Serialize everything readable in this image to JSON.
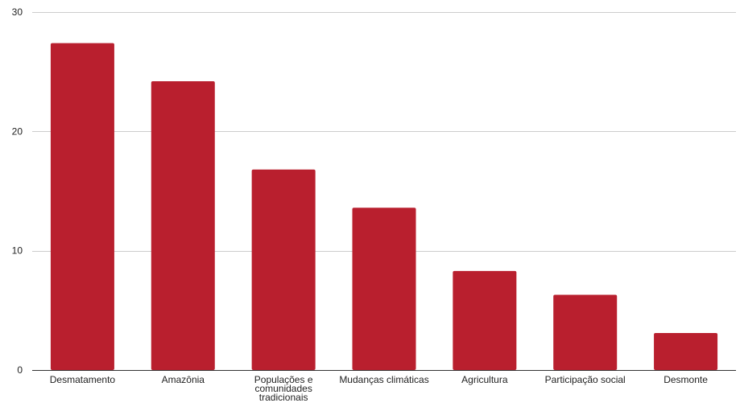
{
  "chart_data": {
    "type": "bar",
    "title": "",
    "xlabel": "",
    "ylabel": "",
    "categories": [
      "Desmatamento",
      "Amazônia",
      "Populações e comunidades tradicionais",
      "Mudanças climáticas",
      "Agricultura",
      "Participação social",
      "Desmonte"
    ],
    "values": [
      27.4,
      24.2,
      16.8,
      13.6,
      8.3,
      6.3,
      3.1
    ],
    "ylim": [
      0,
      30
    ],
    "yticks": [
      0,
      10,
      20,
      30
    ],
    "grid": true,
    "legend": "none",
    "colors": {
      "bar": "#b91f2e",
      "grid": "#cccccc",
      "axis": "#333333",
      "text": "#222222"
    }
  }
}
